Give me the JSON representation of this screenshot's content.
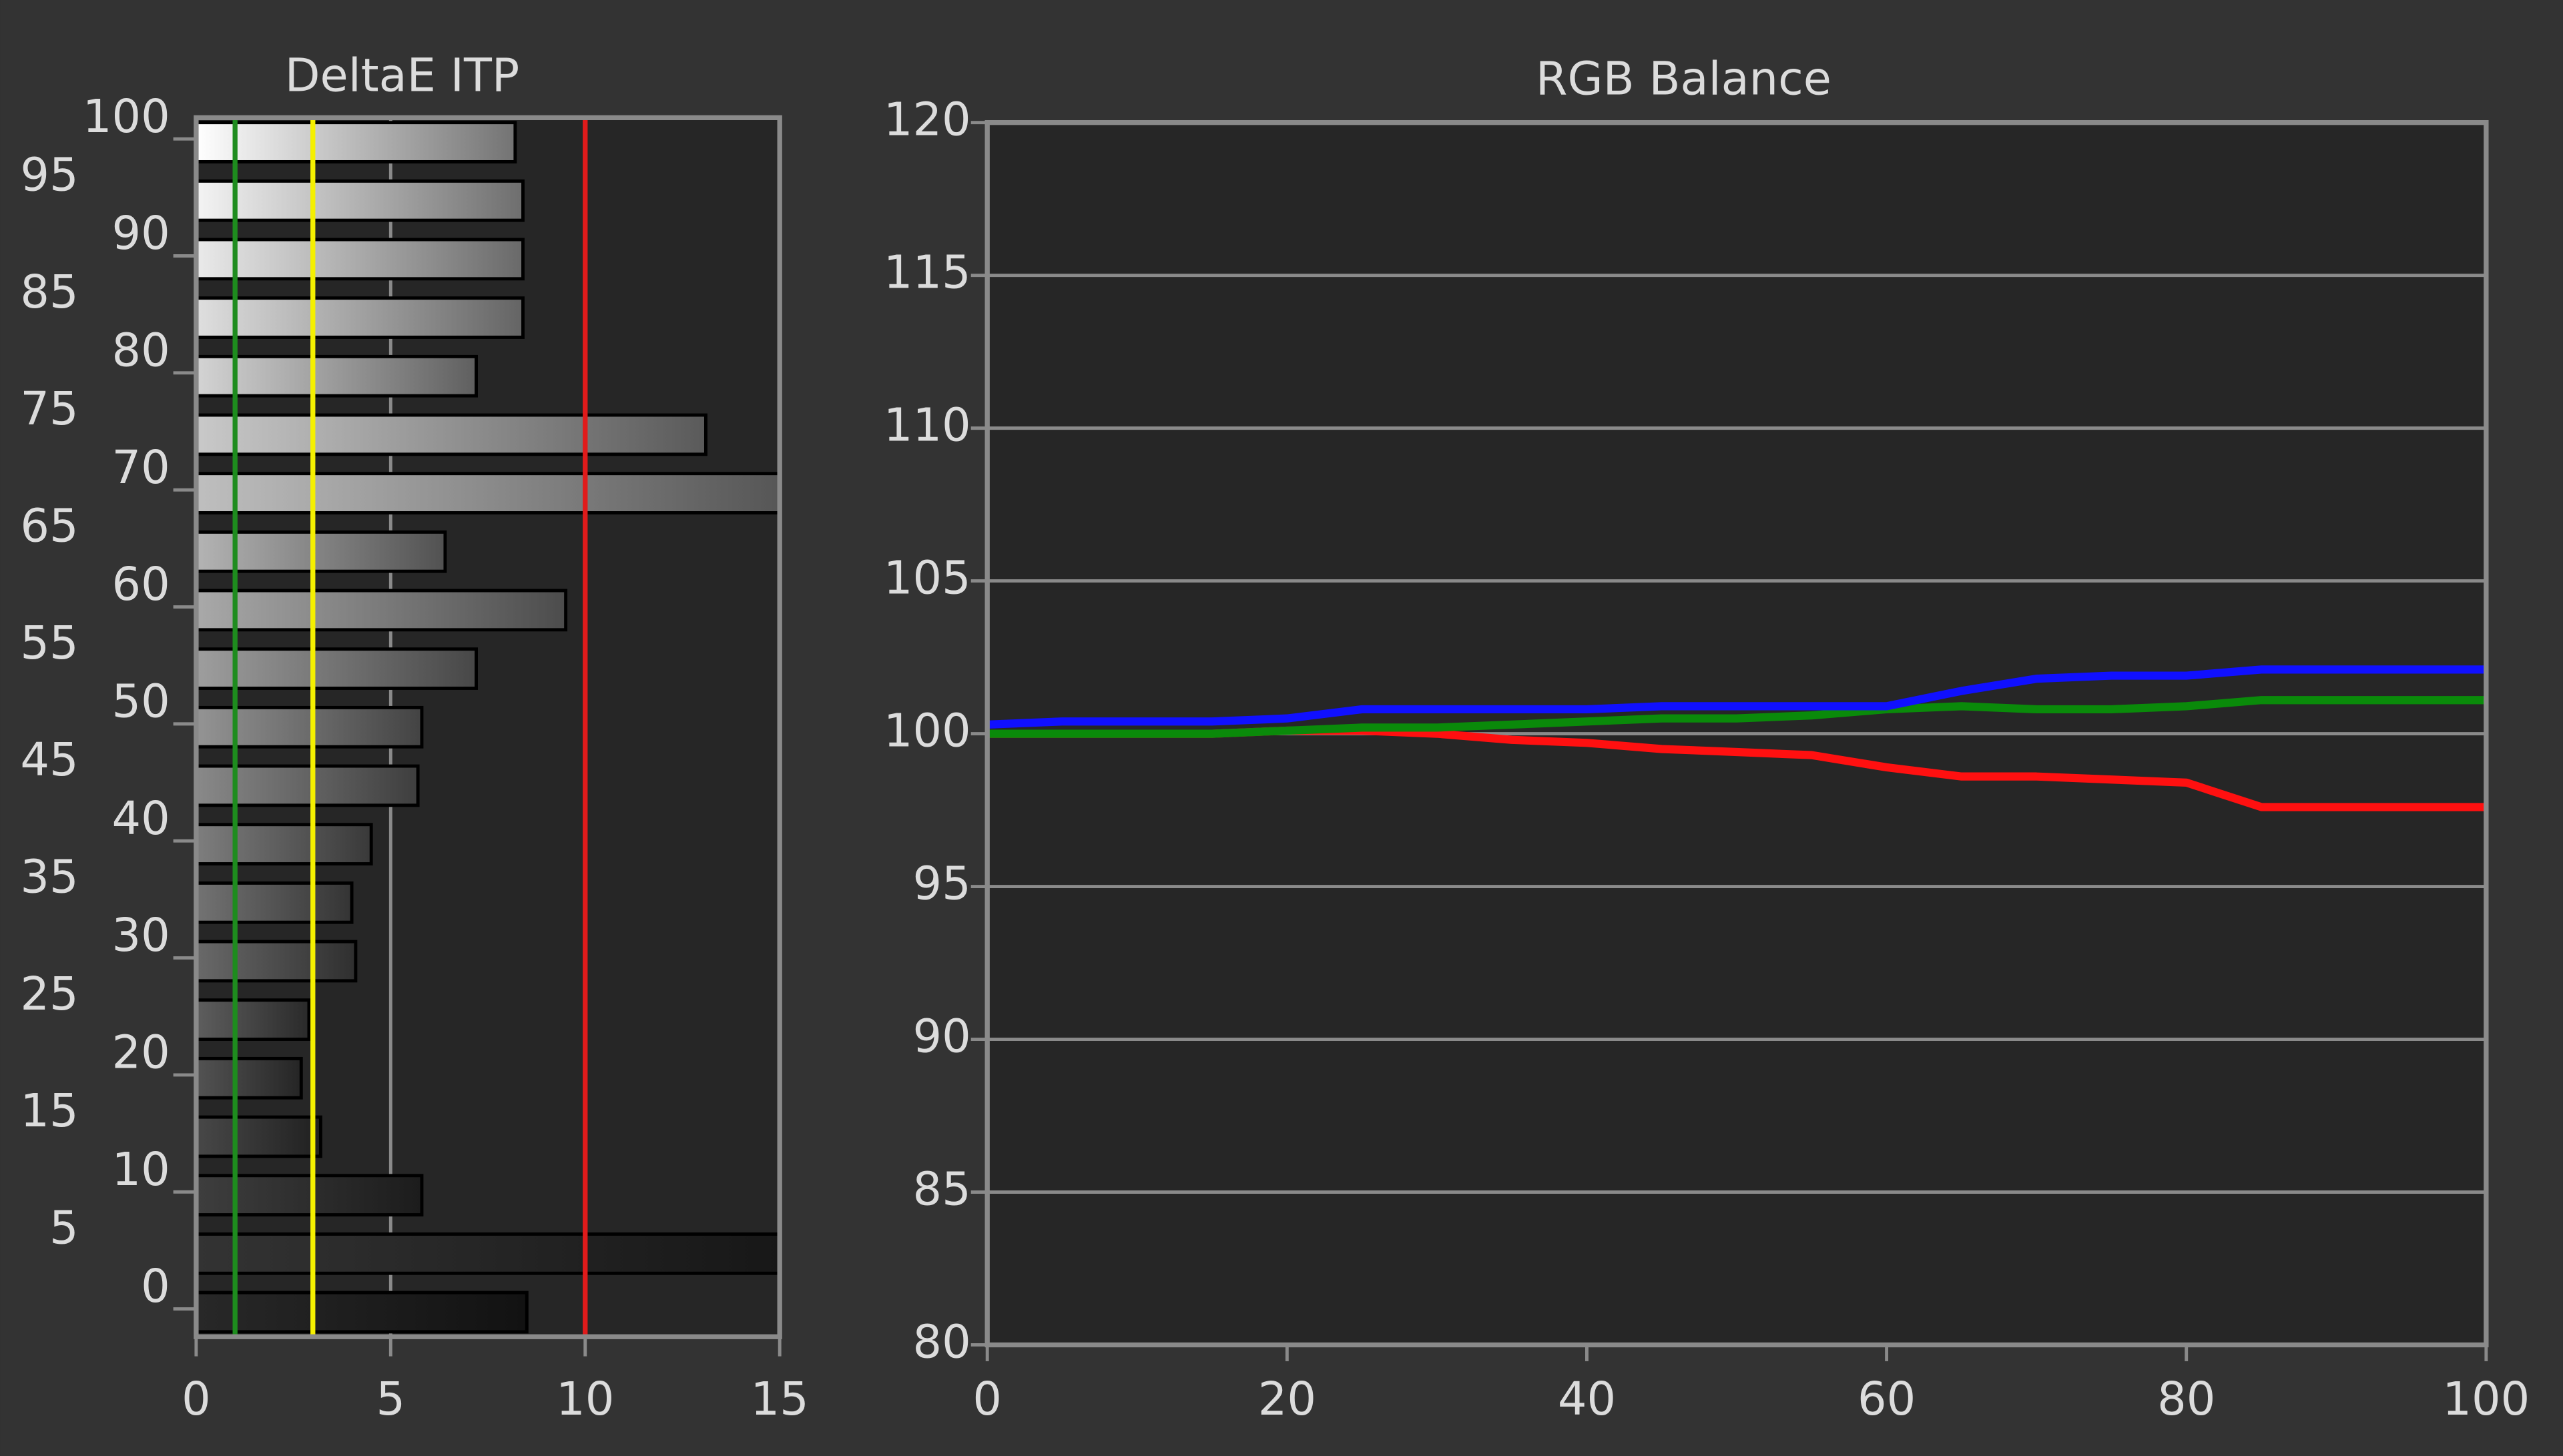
{
  "chart_data": [
    {
      "type": "bar",
      "orientation": "horizontal",
      "title": "DeltaE ITP",
      "categories": [
        "0",
        "5",
        "10",
        "15",
        "20",
        "25",
        "30",
        "35",
        "40",
        "45",
        "50",
        "55",
        "60",
        "65",
        "70",
        "75",
        "80",
        "85",
        "90",
        "95",
        "100"
      ],
      "values": [
        8.5,
        15,
        5.8,
        3.2,
        2.7,
        2.9,
        4.1,
        4.0,
        4.5,
        5.7,
        5.8,
        7.2,
        9.5,
        6.4,
        15,
        13.1,
        7.2,
        8.4,
        8.4,
        8.4,
        8.2
      ],
      "xlim": [
        0,
        15
      ],
      "xticks": [
        0,
        5,
        10,
        15
      ],
      "grid": true,
      "reference_lines": [
        {
          "value": 1,
          "color": "#1e8c1e"
        },
        {
          "value": 3,
          "color": "#f5f000"
        },
        {
          "value": 10,
          "color": "#e01b1b"
        }
      ]
    },
    {
      "type": "line",
      "title": "RGB Balance",
      "x": [
        0,
        5,
        10,
        15,
        20,
        25,
        30,
        35,
        40,
        45,
        50,
        55,
        60,
        65,
        70,
        75,
        80,
        85,
        90,
        95,
        100
      ],
      "series": [
        {
          "name": "Red",
          "color": "#ff1010",
          "values": [
            100,
            100,
            100,
            100,
            100.1,
            100.1,
            100,
            99.8,
            99.7,
            99.5,
            99.4,
            99.3,
            98.9,
            98.6,
            98.6,
            98.5,
            98.4,
            97.6,
            97.6,
            97.6,
            97.6
          ]
        },
        {
          "name": "Green",
          "color": "#0a8a0a",
          "values": [
            100,
            100,
            100,
            100,
            100.1,
            100.2,
            100.2,
            100.3,
            100.4,
            100.5,
            100.5,
            100.6,
            100.8,
            100.9,
            100.8,
            100.8,
            100.9,
            101.1,
            101.1,
            101.1,
            101.1
          ]
        },
        {
          "name": "Blue",
          "color": "#1010ff",
          "values": [
            100.3,
            100.4,
            100.4,
            100.4,
            100.5,
            100.8,
            100.8,
            100.8,
            100.8,
            100.9,
            100.9,
            100.9,
            100.9,
            101.4,
            101.8,
            101.9,
            101.9,
            102.1,
            102.1,
            102.1,
            102.1
          ]
        }
      ],
      "xlim": [
        0,
        100
      ],
      "xticks": [
        0,
        20,
        40,
        60,
        80,
        100
      ],
      "ylim": [
        80,
        120
      ],
      "yticks": [
        80,
        85,
        90,
        95,
        100,
        105,
        110,
        115,
        120
      ],
      "grid": true
    }
  ]
}
